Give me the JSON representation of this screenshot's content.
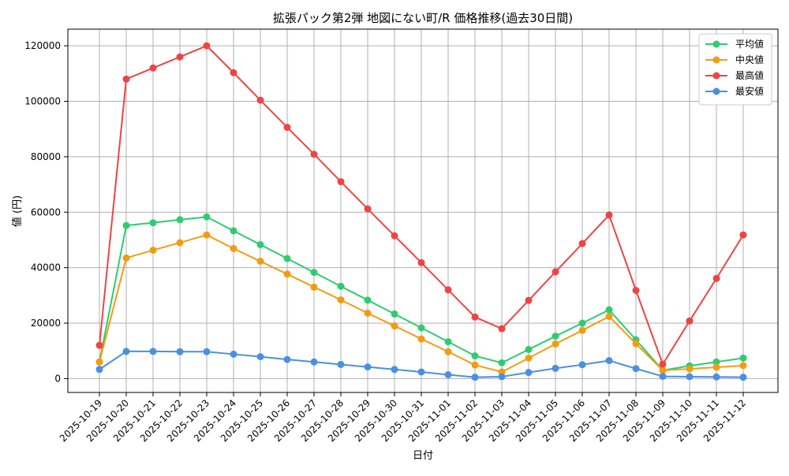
{
  "chart_data": {
    "type": "line",
    "title": "拡張パック第2弾 地図にない町/R 価格推移(過去30日間)",
    "xlabel": "日付",
    "ylabel": "値 (円)",
    "ylim": [
      -5000,
      126000
    ],
    "yticks": [
      0,
      20000,
      40000,
      60000,
      80000,
      100000,
      120000
    ],
    "grid": true,
    "legend_position": "top-right",
    "categories": [
      "2025-10-19",
      "2025-10-20",
      "2025-10-21",
      "2025-10-22",
      "2025-10-23",
      "2025-10-24",
      "2025-10-25",
      "2025-10-26",
      "2025-10-27",
      "2025-10-28",
      "2025-10-29",
      "2025-10-30",
      "2025-10-31",
      "2025-11-01",
      "2025-11-02",
      "2025-11-03",
      "2025-11-04",
      "2025-11-05",
      "2025-11-06",
      "2025-11-07",
      "2025-11-08",
      "2025-11-09",
      "2025-11-10",
      "2025-11-11",
      "2025-11-12"
    ],
    "series": [
      {
        "name": "平均値",
        "color": "#2ecc71",
        "values": [
          6000,
          55200,
          56200,
          57300,
          58300,
          53300,
          48300,
          43300,
          38300,
          33300,
          28300,
          23300,
          18300,
          13300,
          8200,
          5700,
          10500,
          15300,
          20000,
          24800,
          14000,
          3000,
          4600,
          6000,
          7400
        ]
      },
      {
        "name": "中央値",
        "color": "#f39c12",
        "values": [
          6000,
          43500,
          46300,
          49000,
          51800,
          46900,
          42300,
          37700,
          33000,
          28400,
          23600,
          19000,
          14300,
          9700,
          4900,
          2400,
          7400,
          12500,
          17400,
          22400,
          12600,
          3000,
          3500,
          4100,
          4700
        ]
      },
      {
        "name": "最高値",
        "color": "#ef4444",
        "values": [
          12000,
          108000,
          112000,
          116000,
          120000,
          110300,
          100400,
          90600,
          80900,
          71000,
          61200,
          51500,
          41800,
          32000,
          22200,
          18000,
          28200,
          38500,
          48700,
          59000,
          31800,
          5200,
          20800,
          36100,
          51800
        ]
      },
      {
        "name": "最安値",
        "color": "#4a90e2",
        "values": [
          3300,
          9800,
          9800,
          9700,
          9700,
          8800,
          7900,
          6900,
          6000,
          5100,
          4200,
          3300,
          2400,
          1400,
          500,
          700,
          2200,
          3700,
          5000,
          6500,
          3600,
          800,
          700,
          600,
          500
        ]
      }
    ]
  }
}
